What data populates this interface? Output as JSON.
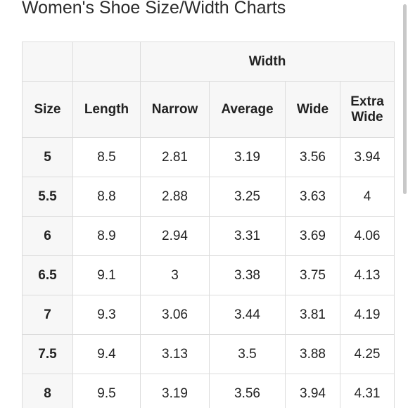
{
  "title": "Women's Shoe Size/Width Charts",
  "table": {
    "group_header": "Width",
    "columns": [
      "Size",
      "Length",
      "Narrow",
      "Average",
      "Wide",
      "Extra Wide"
    ],
    "rows": [
      {
        "size": "5",
        "length": "8.5",
        "narrow": "2.81",
        "average": "3.19",
        "wide": "3.56",
        "extra_wide": "3.94"
      },
      {
        "size": "5.5",
        "length": "8.8",
        "narrow": "2.88",
        "average": "3.25",
        "wide": "3.63",
        "extra_wide": "4"
      },
      {
        "size": "6",
        "length": "8.9",
        "narrow": "2.94",
        "average": "3.31",
        "wide": "3.69",
        "extra_wide": "4.06"
      },
      {
        "size": "6.5",
        "length": "9.1",
        "narrow": "3",
        "average": "3.38",
        "wide": "3.75",
        "extra_wide": "4.13"
      },
      {
        "size": "7",
        "length": "9.3",
        "narrow": "3.06",
        "average": "3.44",
        "wide": "3.81",
        "extra_wide": "4.19"
      },
      {
        "size": "7.5",
        "length": "9.4",
        "narrow": "3.13",
        "average": "3.5",
        "wide": "3.88",
        "extra_wide": "4.25"
      },
      {
        "size": "8",
        "length": "9.5",
        "narrow": "3.19",
        "average": "3.56",
        "wide": "3.94",
        "extra_wide": "4.31"
      }
    ]
  }
}
